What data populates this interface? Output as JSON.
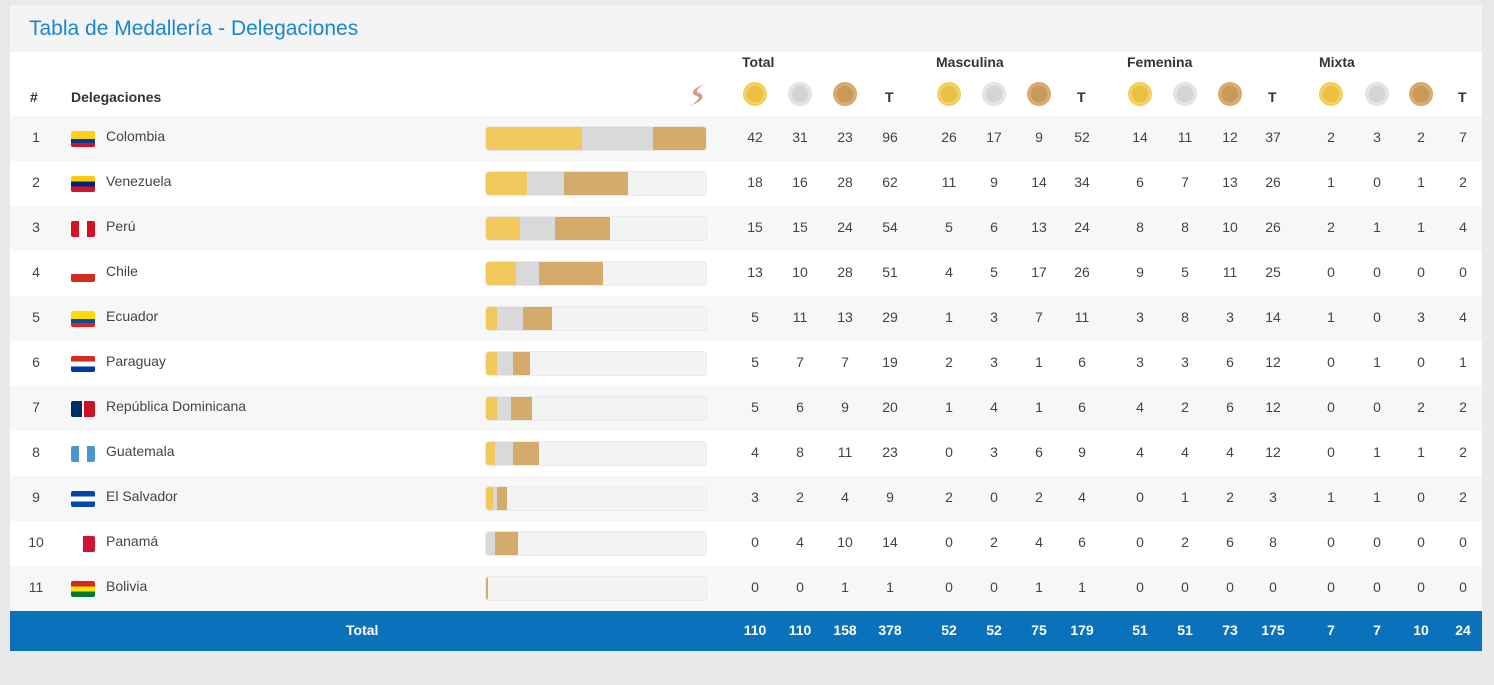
{
  "title": "Tabla de Medallería - Delegaciones",
  "headers": {
    "rank": "#",
    "delegation": "Delegaciones",
    "groups": [
      "Total",
      "Masculina",
      "Femenina",
      "Mixta"
    ],
    "t": "T"
  },
  "colors": {
    "gold": "#f2c85c",
    "silver": "#d9d9d9",
    "bronze": "#d4ab6a",
    "accent": "#1787d0",
    "total_bg": "#0a72bb"
  },
  "rows": [
    {
      "rank": "1",
      "name": "Colombia",
      "flag": "co",
      "values": [
        42,
        31,
        23,
        96,
        26,
        17,
        9,
        52,
        14,
        11,
        12,
        37,
        2,
        3,
        2,
        7
      ]
    },
    {
      "rank": "2",
      "name": "Venezuela",
      "flag": "ve",
      "values": [
        18,
        16,
        28,
        62,
        11,
        9,
        14,
        34,
        6,
        7,
        13,
        26,
        1,
        0,
        1,
        2
      ]
    },
    {
      "rank": "3",
      "name": "Perú",
      "flag": "pe",
      "values": [
        15,
        15,
        24,
        54,
        5,
        6,
        13,
        24,
        8,
        8,
        10,
        26,
        2,
        1,
        1,
        4
      ]
    },
    {
      "rank": "4",
      "name": "Chile",
      "flag": "cl",
      "values": [
        13,
        10,
        28,
        51,
        4,
        5,
        17,
        26,
        9,
        5,
        11,
        25,
        0,
        0,
        0,
        0
      ]
    },
    {
      "rank": "5",
      "name": "Ecuador",
      "flag": "ec",
      "values": [
        5,
        11,
        13,
        29,
        1,
        3,
        7,
        11,
        3,
        8,
        3,
        14,
        1,
        0,
        3,
        4
      ]
    },
    {
      "rank": "6",
      "name": "Paraguay",
      "flag": "py",
      "values": [
        5,
        7,
        7,
        19,
        2,
        3,
        1,
        6,
        3,
        3,
        6,
        12,
        0,
        1,
        0,
        1
      ]
    },
    {
      "rank": "7",
      "name": "República Dominicana",
      "flag": "do",
      "values": [
        5,
        6,
        9,
        20,
        1,
        4,
        1,
        6,
        4,
        2,
        6,
        12,
        0,
        0,
        2,
        2
      ]
    },
    {
      "rank": "8",
      "name": "Guatemala",
      "flag": "gt",
      "values": [
        4,
        8,
        11,
        23,
        0,
        3,
        6,
        9,
        4,
        4,
        4,
        12,
        0,
        1,
        1,
        2
      ]
    },
    {
      "rank": "9",
      "name": "El Salvador",
      "flag": "sv",
      "values": [
        3,
        2,
        4,
        9,
        2,
        0,
        2,
        4,
        0,
        1,
        2,
        3,
        1,
        1,
        0,
        2
      ]
    },
    {
      "rank": "10",
      "name": "Panamá",
      "flag": "pa",
      "values": [
        0,
        4,
        10,
        14,
        0,
        2,
        4,
        6,
        0,
        2,
        6,
        8,
        0,
        0,
        0,
        0
      ]
    },
    {
      "rank": "11",
      "name": "Bolivia",
      "flag": "bo",
      "values": [
        0,
        0,
        1,
        1,
        0,
        0,
        1,
        1,
        0,
        0,
        0,
        0,
        0,
        0,
        0,
        0
      ]
    }
  ],
  "total": {
    "label": "Total",
    "values": [
      110,
      110,
      158,
      378,
      52,
      52,
      75,
      179,
      51,
      51,
      73,
      175,
      7,
      7,
      10,
      24
    ]
  },
  "bar_max": 96
}
